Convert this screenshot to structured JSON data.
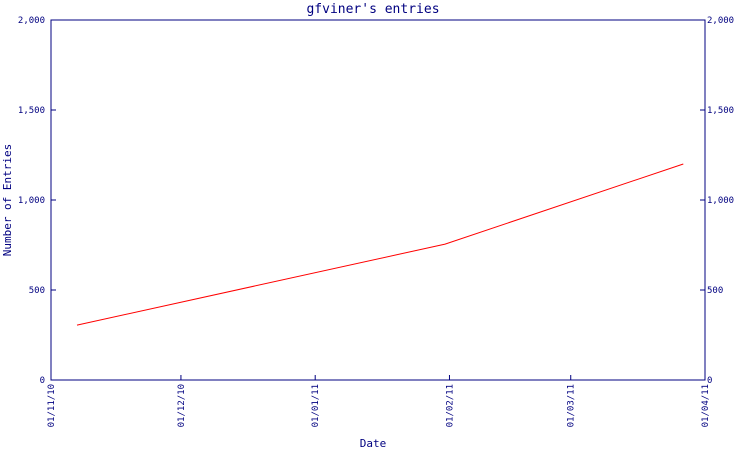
{
  "chart_data": {
    "type": "line",
    "title": "gfviner's entries",
    "xlabel": "Date",
    "ylabel": "Number of Entries",
    "x_ticks": [
      "01/11/10",
      "01/12/10",
      "01/01/11",
      "01/02/11",
      "01/03/11",
      "01/04/11"
    ],
    "y_ticks": [
      "0",
      "500",
      "1,000",
      "1,500",
      "2,000"
    ],
    "ylim": [
      0,
      2000
    ],
    "xlim": [
      "2010-11-01",
      "2011-04-01"
    ],
    "grid": false,
    "series": [
      {
        "x": [
          "2010-11-07",
          "2011-01-31",
          "2011-03-27"
        ],
        "y": [
          305,
          755,
          1200
        ]
      }
    ],
    "colors": {
      "axis": "#000080",
      "text": "#000080",
      "line": "#ff0000"
    }
  }
}
